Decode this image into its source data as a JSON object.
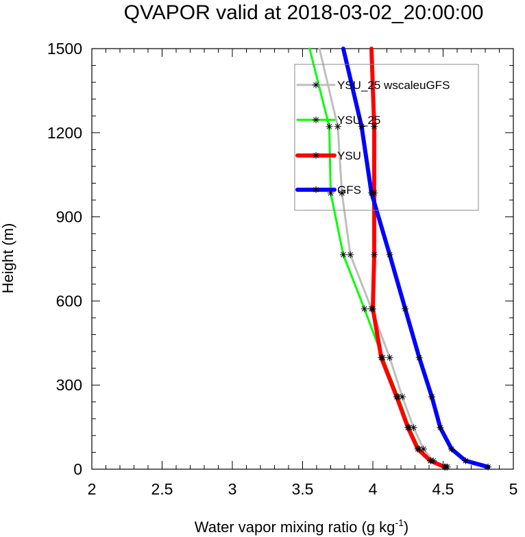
{
  "chart_data": {
    "type": "line",
    "title": "QVAPOR valid at 2018-03-02_20:00:00",
    "xlabel": "Water vapor mixing ratio (g kg",
    "xlabel_sup": "-1",
    "xlabel_close": ")",
    "ylabel": "Height (m)",
    "xlim": [
      2,
      5
    ],
    "ylim": [
      0,
      1500
    ],
    "x_ticks": [
      "2",
      "2.5",
      "3",
      "3.5",
      "4",
      "4.5",
      "5"
    ],
    "y_ticks": [
      "0",
      "300",
      "600",
      "900",
      "1200",
      "1500"
    ],
    "grid": false,
    "legend_position": "top-right",
    "series": [
      {
        "name": "YSU_25 wscaleuGFS",
        "color": "#bebebe",
        "line_width": 3,
        "points": [
          [
            4.53,
            8
          ],
          [
            4.43,
            30
          ],
          [
            4.36,
            72
          ],
          [
            4.29,
            148
          ],
          [
            4.21,
            258
          ],
          [
            4.12,
            398
          ],
          [
            3.99,
            572
          ],
          [
            3.84,
            765
          ],
          [
            3.78,
            985
          ],
          [
            3.75,
            1222
          ],
          [
            3.62,
            1500
          ]
        ],
        "markers": [
          [
            4.53,
            8
          ],
          [
            4.43,
            30
          ],
          [
            4.36,
            72
          ],
          [
            4.29,
            148
          ],
          [
            4.21,
            258
          ],
          [
            4.12,
            398
          ],
          [
            3.99,
            572
          ],
          [
            3.84,
            765
          ],
          [
            3.78,
            985
          ],
          [
            3.75,
            1222
          ]
        ]
      },
      {
        "name": "YSU_25",
        "color": "#00ff00",
        "line_width": 3,
        "points": [
          [
            4.52,
            8
          ],
          [
            4.41,
            30
          ],
          [
            4.33,
            72
          ],
          [
            4.26,
            148
          ],
          [
            4.18,
            258
          ],
          [
            4.07,
            398
          ],
          [
            3.94,
            572
          ],
          [
            3.79,
            765
          ],
          [
            3.7,
            985
          ],
          [
            3.69,
            1222
          ],
          [
            3.55,
            1500
          ]
        ],
        "markers": [
          [
            4.52,
            8
          ],
          [
            4.41,
            30
          ],
          [
            4.33,
            72
          ],
          [
            4.26,
            148
          ],
          [
            4.18,
            258
          ],
          [
            4.07,
            398
          ],
          [
            3.94,
            572
          ],
          [
            3.79,
            765
          ],
          [
            3.7,
            985
          ],
          [
            3.69,
            1222
          ]
        ]
      },
      {
        "name": "YSU",
        "color": "#ff0000",
        "line_width": 6,
        "points": [
          [
            4.51,
            8
          ],
          [
            4.41,
            30
          ],
          [
            4.32,
            72
          ],
          [
            4.25,
            148
          ],
          [
            4.17,
            258
          ],
          [
            4.06,
            398
          ],
          [
            4.0,
            572
          ],
          [
            4.01,
            765
          ],
          [
            4.01,
            985
          ],
          [
            4.01,
            1222
          ],
          [
            3.99,
            1500
          ]
        ],
        "markers": [
          [
            4.51,
            8
          ],
          [
            4.41,
            30
          ],
          [
            4.32,
            72
          ],
          [
            4.25,
            148
          ],
          [
            4.17,
            258
          ],
          [
            4.06,
            398
          ],
          [
            4.0,
            572
          ],
          [
            4.01,
            765
          ],
          [
            4.01,
            985
          ],
          [
            4.01,
            1222
          ]
        ]
      },
      {
        "name": "GFS",
        "color": "#0000ff",
        "line_width": 6,
        "points": [
          [
            4.82,
            8
          ],
          [
            4.66,
            30
          ],
          [
            4.56,
            72
          ],
          [
            4.48,
            148
          ],
          [
            4.42,
            258
          ],
          [
            4.33,
            398
          ],
          [
            4.23,
            572
          ],
          [
            4.12,
            765
          ],
          [
            3.99,
            985
          ],
          [
            3.92,
            1222
          ],
          [
            3.79,
            1500
          ]
        ],
        "markers": [
          [
            4.82,
            8
          ],
          [
            4.66,
            30
          ],
          [
            4.56,
            72
          ],
          [
            4.48,
            148
          ],
          [
            4.42,
            258
          ],
          [
            4.33,
            398
          ],
          [
            4.23,
            572
          ],
          [
            4.12,
            765
          ],
          [
            3.99,
            985
          ],
          [
            3.92,
            1222
          ]
        ]
      }
    ]
  }
}
